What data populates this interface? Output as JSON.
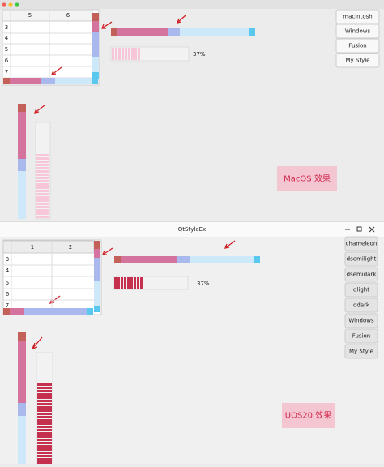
{
  "top": {
    "table": {
      "columns": [
        "5",
        "6"
      ],
      "rows": [
        "3",
        "4",
        "5",
        "6",
        "7"
      ]
    },
    "progress": {
      "value": 37,
      "label": "37%"
    },
    "buttons": [
      "macintosh",
      "Windows",
      "Fusion",
      "My Style"
    ],
    "caption": "MacOS 效果"
  },
  "bottom": {
    "title": "QtStyleEx",
    "table": {
      "columns": [
        "1",
        "2"
      ],
      "rows": [
        "3",
        "4",
        "5",
        "6",
        "7"
      ]
    },
    "progress": {
      "value": 37,
      "label": "37%"
    },
    "buttons": [
      "chameleon",
      "dsemilight",
      "dsemidark",
      "dlight",
      "ddark",
      "Windows",
      "Fusion",
      "My Style"
    ],
    "caption": "UOS20 效果"
  }
}
